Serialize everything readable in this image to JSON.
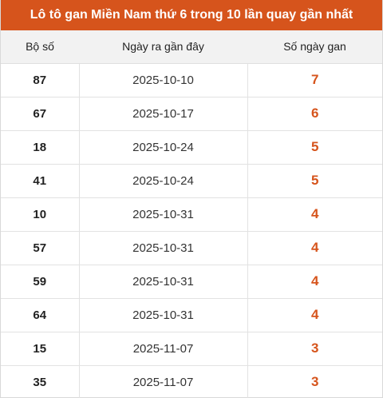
{
  "title": "Lô tô gan Miền Nam thứ 6 trong 10 lần quay gần nhất",
  "colors": {
    "accent": "#d6541c",
    "header_bg": "#f2f2f2"
  },
  "table": {
    "headers": [
      "Bộ số",
      "Ngày ra gần đây",
      "Số ngày gan"
    ],
    "rows": [
      {
        "number": "87",
        "date": "2025-10-10",
        "days": "7"
      },
      {
        "number": "67",
        "date": "2025-10-17",
        "days": "6"
      },
      {
        "number": "18",
        "date": "2025-10-24",
        "days": "5"
      },
      {
        "number": "41",
        "date": "2025-10-24",
        "days": "5"
      },
      {
        "number": "10",
        "date": "2025-10-31",
        "days": "4"
      },
      {
        "number": "57",
        "date": "2025-10-31",
        "days": "4"
      },
      {
        "number": "59",
        "date": "2025-10-31",
        "days": "4"
      },
      {
        "number": "64",
        "date": "2025-10-31",
        "days": "4"
      },
      {
        "number": "15",
        "date": "2025-11-07",
        "days": "3"
      },
      {
        "number": "35",
        "date": "2025-11-07",
        "days": "3"
      }
    ]
  }
}
